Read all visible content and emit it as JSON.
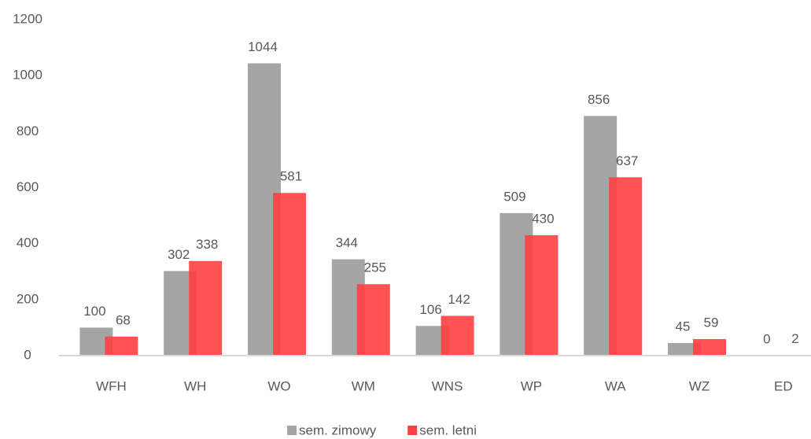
{
  "chart_data": {
    "type": "bar",
    "categories": [
      "WFH",
      "WH",
      "WO",
      "WM",
      "WNS",
      "WP",
      "WA",
      "WZ",
      "ED"
    ],
    "series": [
      {
        "name": "sem. zimowy",
        "color": "#a5a5a5",
        "values": [
          100,
          302,
          1044,
          344,
          106,
          509,
          856,
          45,
          0
        ]
      },
      {
        "name": "sem. letni",
        "color": "#ff4040",
        "values": [
          68,
          338,
          581,
          255,
          142,
          430,
          637,
          59,
          2
        ]
      }
    ],
    "ylim": [
      0,
      1200
    ],
    "yticks": [
      0,
      200,
      400,
      600,
      800,
      1000,
      1200
    ],
    "grid": false,
    "legend": "bottom"
  }
}
